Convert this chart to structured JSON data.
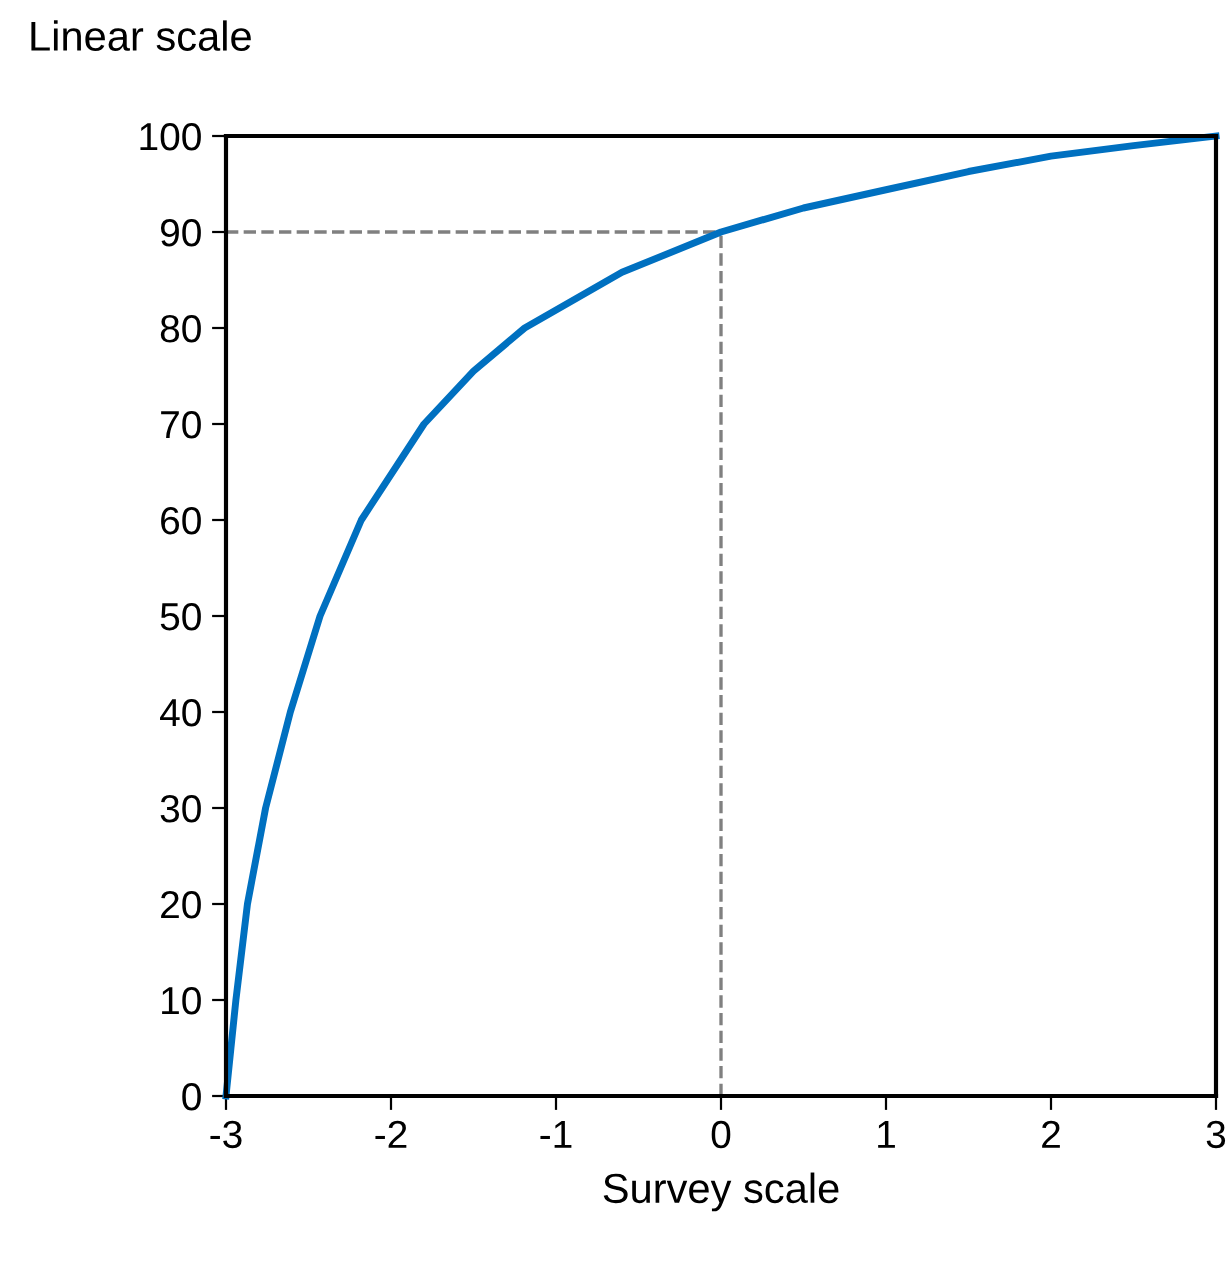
{
  "chart_data": {
    "type": "line",
    "ylabel": "Linear scale",
    "xlabel": "Survey scale",
    "series": [
      {
        "color": "#0070c0",
        "x": [
          -3,
          -2.97,
          -2.94,
          -2.87,
          -2.76,
          -2.61,
          -2.43,
          -2.18,
          -1.8,
          -1.5,
          -1.19,
          -0.6,
          0,
          0.5,
          1,
          1.5,
          2,
          2.5,
          3
        ],
        "values": [
          0,
          5,
          10,
          20,
          30,
          40,
          50,
          60,
          70,
          75.5,
          80,
          85.8,
          90,
          92.5,
          94.4,
          96.3,
          97.9,
          99,
          100
        ]
      }
    ],
    "xlim": [
      -3,
      3
    ],
    "xticks": [
      -3,
      -2,
      -1,
      0,
      1,
      2,
      3
    ],
    "ylim": [
      0,
      100
    ],
    "yticks": [
      0,
      10,
      20,
      30,
      40,
      50,
      60,
      70,
      80,
      90,
      100
    ],
    "ref_lines": [
      {
        "axis": "y",
        "value": 90,
        "color": "#808080",
        "line_style": "dashed"
      },
      {
        "axis": "x",
        "value": 0,
        "color": "#808080",
        "line_style": "dashed"
      }
    ],
    "grid": false,
    "legend": false,
    "marker": "none",
    "line_style": "solid"
  }
}
